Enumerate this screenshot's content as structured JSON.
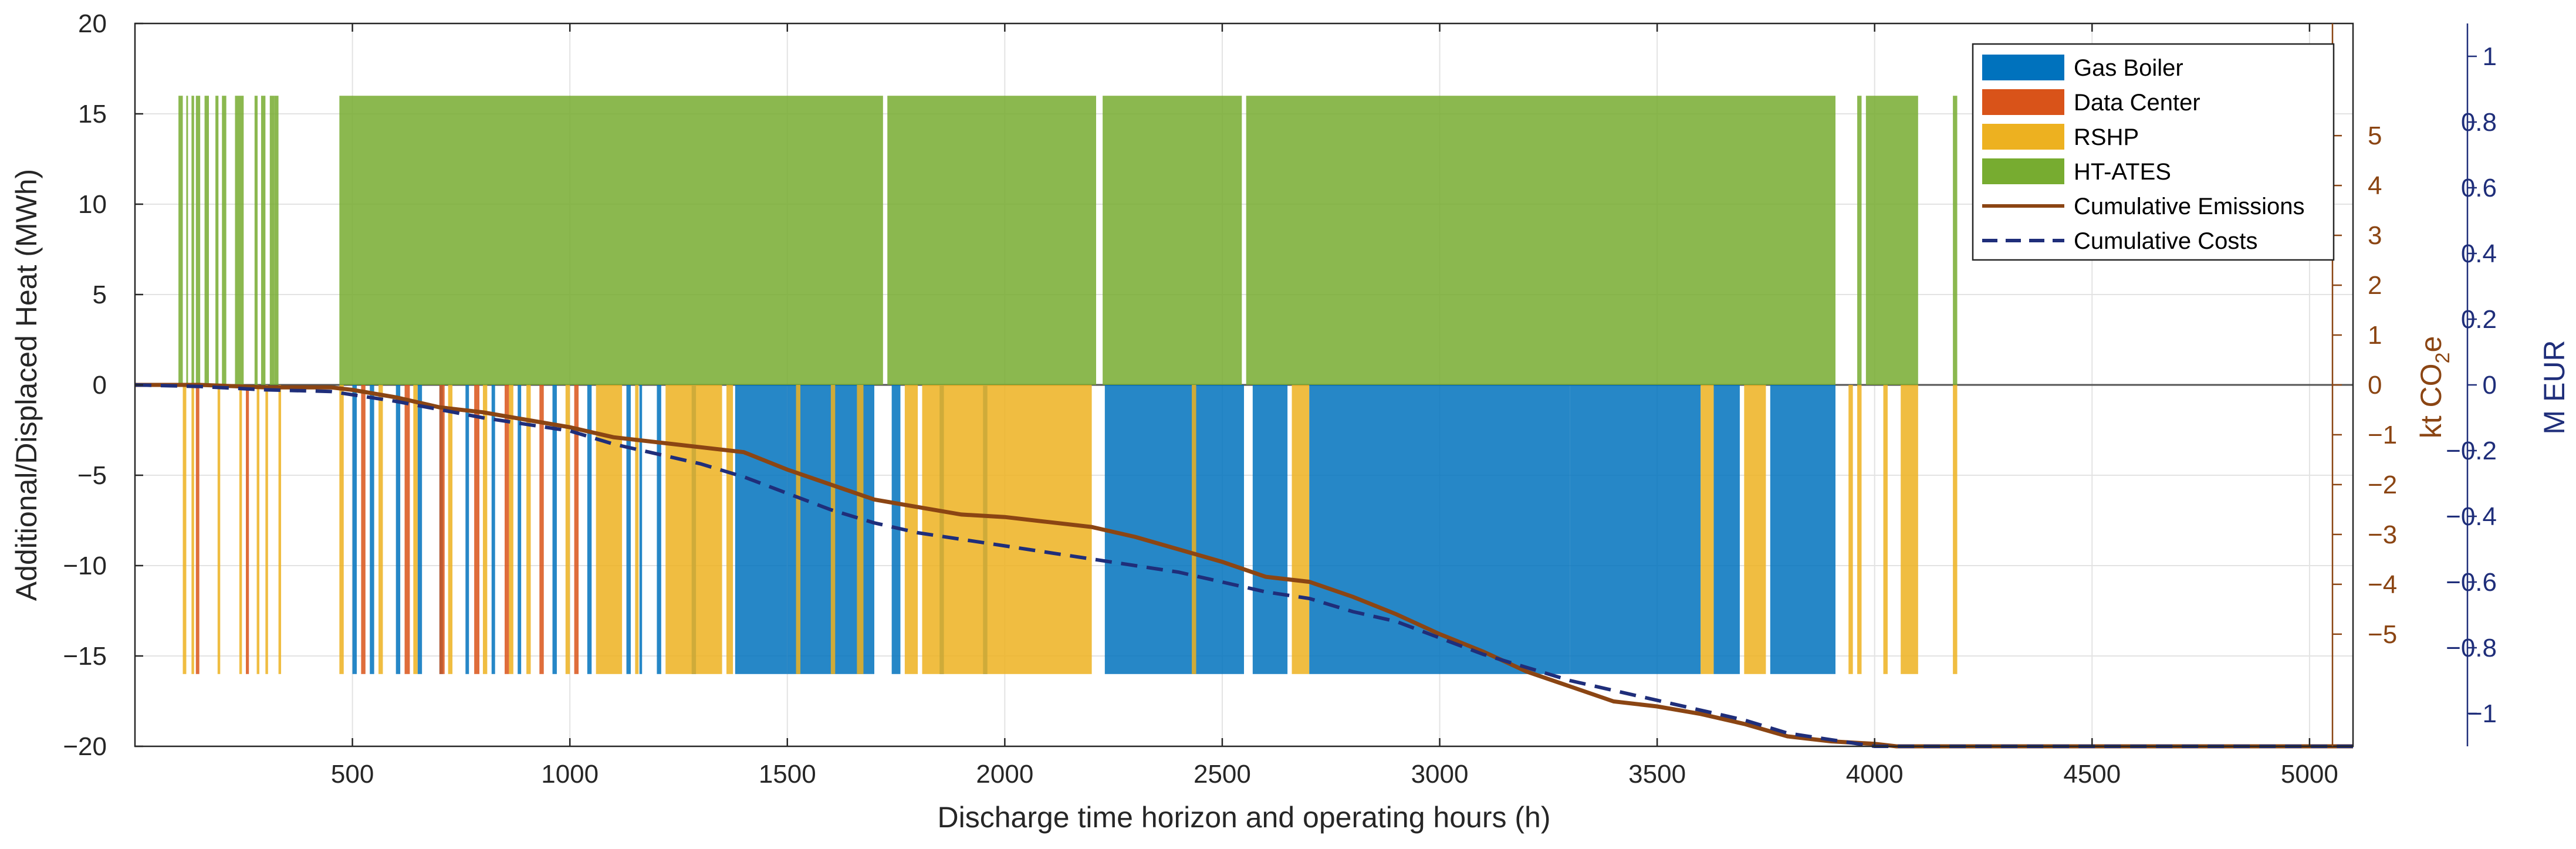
{
  "chart_data": {
    "type": "bar",
    "title": "",
    "xlabel": "Discharge time horizon and operating hours (h)",
    "ylabel": "Additional/Displaced Heat (MWh)",
    "xlim": [
      0,
      5100
    ],
    "xticks": [
      500,
      1000,
      1500,
      2000,
      2500,
      3000,
      3500,
      4000,
      4500,
      5000
    ],
    "ylim": [
      -20,
      20
    ],
    "yticks": [
      -20,
      -15,
      -10,
      -5,
      0,
      5,
      10,
      15,
      20
    ],
    "grid": true,
    "legend_position": "top-right",
    "bar_height_positive_MWh": 16,
    "bar_height_negative_MWh": -16,
    "series": [
      {
        "name": "Gas Boiler",
        "color": "#0072BD",
        "kind": "bar-negative",
        "segments": [
          [
            500,
            510
          ],
          [
            540,
            550
          ],
          [
            600,
            610
          ],
          [
            650,
            660
          ],
          [
            700,
            708
          ],
          [
            760,
            768
          ],
          [
            820,
            828
          ],
          [
            880,
            888
          ],
          [
            960,
            970
          ],
          [
            1040,
            1050
          ],
          [
            1130,
            1140
          ],
          [
            1160,
            1166
          ],
          [
            1200,
            1210
          ],
          [
            1280,
            1290
          ],
          [
            1380,
            1500
          ],
          [
            1500,
            1700
          ],
          [
            1740,
            1760
          ],
          [
            1850,
            1860
          ],
          [
            1950,
            1960
          ],
          [
            2230,
            2550
          ],
          [
            2570,
            2650
          ],
          [
            2700,
            3300
          ],
          [
            3300,
            3600
          ],
          [
            3630,
            3690
          ],
          [
            3760,
            3910
          ]
        ]
      },
      {
        "name": "Data Center",
        "color": "#D95319",
        "kind": "bar-negative",
        "segments": [
          [
            140,
            148
          ],
          [
            255,
            262
          ],
          [
            520,
            530
          ],
          [
            620,
            632
          ],
          [
            700,
            712
          ],
          [
            780,
            792
          ],
          [
            850,
            860
          ],
          [
            930,
            940
          ],
          [
            1010,
            1020
          ]
        ]
      },
      {
        "name": "RSHP",
        "color": "#EDB120",
        "kind": "bar-negative",
        "segments": [
          [
            110,
            118
          ],
          [
            130,
            136
          ],
          [
            190,
            196
          ],
          [
            240,
            246
          ],
          [
            280,
            286
          ],
          [
            300,
            306
          ],
          [
            330,
            336
          ],
          [
            470,
            480
          ],
          [
            560,
            570
          ],
          [
            640,
            650
          ],
          [
            720,
            730
          ],
          [
            800,
            810
          ],
          [
            860,
            870
          ],
          [
            900,
            910
          ],
          [
            990,
            1000
          ],
          [
            1060,
            1120
          ],
          [
            1150,
            1158
          ],
          [
            1220,
            1350
          ],
          [
            1360,
            1375
          ],
          [
            1520,
            1530
          ],
          [
            1600,
            1610
          ],
          [
            1660,
            1675
          ],
          [
            1770,
            1800
          ],
          [
            1810,
            2200
          ],
          [
            2430,
            2440
          ],
          [
            2660,
            2700
          ],
          [
            3600,
            3630
          ],
          [
            3700,
            3750
          ],
          [
            3940,
            3950
          ],
          [
            3960,
            3970
          ],
          [
            4020,
            4030
          ],
          [
            4060,
            4100
          ],
          [
            4180,
            4190
          ]
        ]
      },
      {
        "name": "HT-ATES",
        "color": "#77AC30",
        "kind": "bar-positive",
        "segments": [
          [
            100,
            110
          ],
          [
            118,
            122
          ],
          [
            130,
            136
          ],
          [
            140,
            150
          ],
          [
            160,
            170
          ],
          [
            185,
            192
          ],
          [
            200,
            210
          ],
          [
            230,
            250
          ],
          [
            275,
            282
          ],
          [
            290,
            300
          ],
          [
            310,
            320
          ],
          [
            320,
            330
          ],
          [
            470,
            1720
          ],
          [
            1730,
            2210
          ],
          [
            2225,
            2545
          ],
          [
            2555,
            3910
          ],
          [
            3960,
            3970
          ],
          [
            3980,
            4100
          ],
          [
            4180,
            4190
          ]
        ]
      }
    ],
    "cumulative_lines": [
      {
        "name": "Cumulative Emissions",
        "axis": "kt CO2e",
        "color": "#8B4513",
        "style": "solid",
        "x": [
          0,
          150,
          300,
          450,
          500,
          600,
          700,
          800,
          900,
          1000,
          1100,
          1200,
          1300,
          1400,
          1500,
          1600,
          1700,
          1800,
          1900,
          2000,
          2100,
          2200,
          2300,
          2400,
          2500,
          2600,
          2700,
          2800,
          2900,
          3000,
          3100,
          3200,
          3300,
          3400,
          3500,
          3600,
          3700,
          3800,
          3900,
          4000,
          4050,
          4100,
          5100
        ],
        "y": [
          0,
          0,
          -0.05,
          -0.05,
          -0.1,
          -0.25,
          -0.45,
          -0.55,
          -0.7,
          -0.85,
          -1.05,
          -1.15,
          -1.25,
          -1.35,
          -1.7,
          -2.0,
          -2.3,
          -2.45,
          -2.6,
          -2.65,
          -2.75,
          -2.85,
          -3.05,
          -3.3,
          -3.55,
          -3.85,
          -3.95,
          -4.25,
          -4.6,
          -5.0,
          -5.35,
          -5.75,
          -6.05,
          -6.35,
          -6.45,
          -6.6,
          -6.8,
          -7.05,
          -7.15,
          -7.2,
          -7.25,
          -7.25,
          -7.25
        ]
      },
      {
        "name": "Cumulative Costs",
        "axis": "M EUR",
        "color": "#1F2E7A",
        "style": "dashed",
        "x": [
          0,
          150,
          300,
          450,
          500,
          600,
          700,
          800,
          900,
          1000,
          1100,
          1200,
          1300,
          1400,
          1500,
          1600,
          1700,
          1800,
          1900,
          2000,
          2100,
          2200,
          2300,
          2400,
          2500,
          2600,
          2700,
          2800,
          2900,
          3000,
          3100,
          3200,
          3300,
          3400,
          3500,
          3600,
          3700,
          3800,
          3900,
          4000,
          4100,
          5100
        ],
        "y": [
          0,
          -0.005,
          -0.015,
          -0.02,
          -0.03,
          -0.05,
          -0.075,
          -0.1,
          -0.12,
          -0.14,
          -0.18,
          -0.21,
          -0.24,
          -0.28,
          -0.33,
          -0.38,
          -0.42,
          -0.45,
          -0.47,
          -0.49,
          -0.51,
          -0.53,
          -0.55,
          -0.57,
          -0.6,
          -0.63,
          -0.65,
          -0.69,
          -0.72,
          -0.77,
          -0.82,
          -0.86,
          -0.9,
          -0.93,
          -0.96,
          -0.99,
          -1.02,
          -1.06,
          -1.08,
          -1.1,
          -1.1,
          -1.1
        ]
      }
    ],
    "right_axes": [
      {
        "label": "kt CO2e",
        "label_base": "kt CO",
        "label_sub": "2",
        "label_tail": "e",
        "color": "#8B4513",
        "ylim": [
          -7.25,
          7.25
        ],
        "ticks": [
          -5,
          -4,
          -3,
          -2,
          -1,
          0,
          1,
          2,
          3,
          4,
          5
        ],
        "tick_labels": [
          "−5",
          "−4",
          "−3",
          "−2",
          "−1",
          "0",
          "1",
          "2",
          "3",
          "4",
          "5"
        ]
      },
      {
        "label": "M EUR",
        "color": "#1F2E7A",
        "ylim": [
          -1.1,
          1.1
        ],
        "ticks": [
          -1,
          -0.8,
          -0.6,
          -0.4,
          -0.2,
          0,
          0.2,
          0.4,
          0.6,
          0.8,
          1
        ],
        "tick_labels": [
          "−1",
          "−0.8",
          "−0.6",
          "−0.4",
          "−0.2",
          "0",
          "0.2",
          "0.4",
          "0.6",
          "0.8",
          "1"
        ]
      }
    ],
    "left_tick_labels": [
      "−20",
      "−15",
      "−10",
      "−5",
      "0",
      "5",
      "10",
      "15",
      "20"
    ],
    "x_tick_labels": [
      "500",
      "1000",
      "1500",
      "2000",
      "2500",
      "3000",
      "3500",
      "4000",
      "4500",
      "5000"
    ],
    "legend": [
      {
        "label": "Gas Boiler",
        "color": "#0072BD",
        "kind": "patch"
      },
      {
        "label": "Data Center",
        "color": "#D95319",
        "kind": "patch"
      },
      {
        "label": "RSHP",
        "color": "#EDB120",
        "kind": "patch"
      },
      {
        "label": "HT-ATES",
        "color": "#77AC30",
        "kind": "patch"
      },
      {
        "label": "Cumulative Emissions",
        "color": "#8B4513",
        "kind": "line-solid"
      },
      {
        "label": "Cumulative Costs",
        "color": "#1F2E7A",
        "kind": "line-dashed"
      }
    ]
  }
}
